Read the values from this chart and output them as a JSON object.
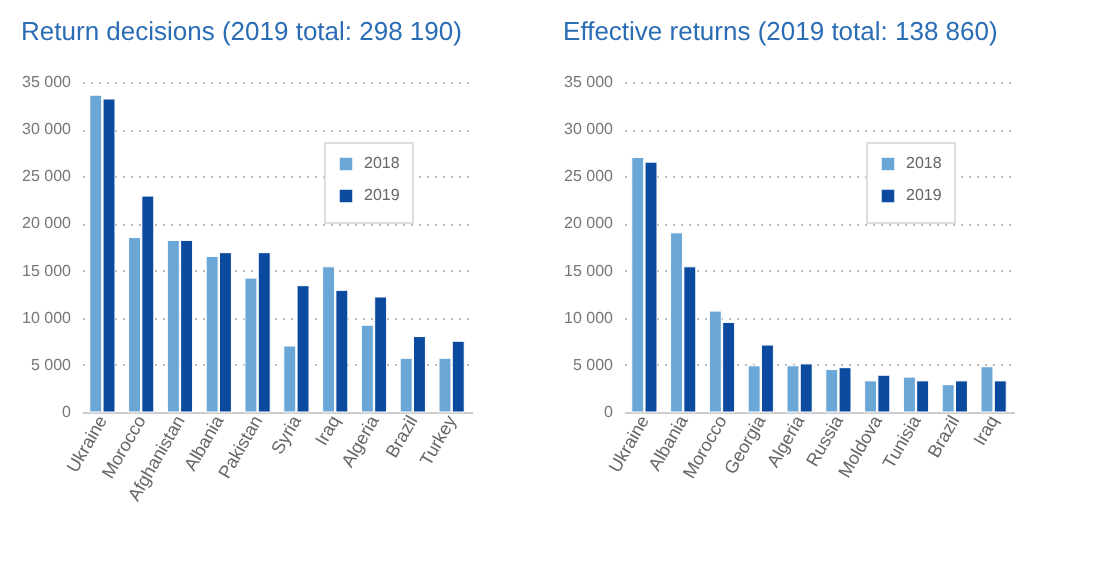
{
  "chart_data": [
    {
      "type": "bar",
      "title": "Return decisions (2019 total: 298 190)",
      "categories": [
        "Ukraine",
        "Morocco",
        "Afghanistan",
        "Albania",
        "Pakistan",
        "Syria",
        "Iraq",
        "Algeria",
        "Brazil",
        "Turkey"
      ],
      "series": [
        {
          "name": "2018",
          "color": "#6aa6d6",
          "values": [
            33600,
            18500,
            18200,
            16500,
            14200,
            7000,
            15400,
            9200,
            5700,
            5700
          ]
        },
        {
          "name": "2019",
          "color": "#0b4a9e",
          "values": [
            33200,
            22900,
            18200,
            16900,
            16900,
            13400,
            12900,
            12200,
            8000,
            7500
          ]
        }
      ],
      "ylim": [
        0,
        35000
      ],
      "yticks": [
        {
          "value": 0,
          "label": "0"
        },
        {
          "value": 5000,
          "label": "5 000"
        },
        {
          "value": 10000,
          "label": "10 000"
        },
        {
          "value": 15000,
          "label": "15 000"
        },
        {
          "value": 20000,
          "label": "20 000"
        },
        {
          "value": 25000,
          "label": "25 000"
        },
        {
          "value": 30000,
          "label": "30 000"
        },
        {
          "value": 35000,
          "label": "35 000"
        }
      ],
      "grid": "y",
      "legend": "top right"
    },
    {
      "type": "bar",
      "title": "Effective returns (2019 total: 138 860)",
      "categories": [
        "Ukraine",
        "Albania",
        "Morocco",
        "Georgia",
        "Algeria",
        "Russia",
        "Moldova",
        "Tunisia",
        "Brazil",
        "Iraq"
      ],
      "series": [
        {
          "name": "2018",
          "color": "#6aa6d6",
          "values": [
            27000,
            19000,
            10700,
            4900,
            4900,
            4500,
            3300,
            3700,
            2900,
            4800
          ]
        },
        {
          "name": "2019",
          "color": "#0b4a9e",
          "values": [
            26500,
            15400,
            9500,
            7100,
            5100,
            4700,
            3900,
            3300,
            3300,
            3300
          ]
        }
      ],
      "ylim": [
        0,
        35000
      ],
      "yticks": [
        {
          "value": 0,
          "label": "0"
        },
        {
          "value": 5000,
          "label": "5 000"
        },
        {
          "value": 10000,
          "label": "10 000"
        },
        {
          "value": 15000,
          "label": "15 000"
        },
        {
          "value": 20000,
          "label": "20 000"
        },
        {
          "value": 25000,
          "label": "25 000"
        },
        {
          "value": 30000,
          "label": "30 000"
        },
        {
          "value": 35000,
          "label": "35 000"
        }
      ],
      "grid": "y",
      "legend": "top right"
    }
  ]
}
